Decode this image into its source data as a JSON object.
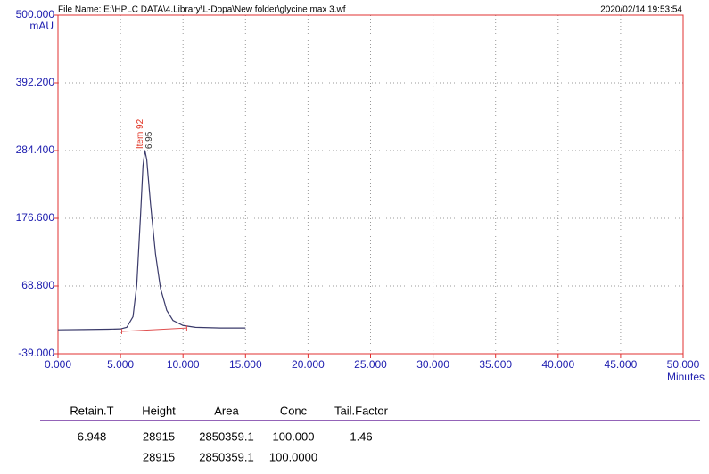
{
  "chart_data": {
    "type": "line",
    "header": {
      "file_name": "File Name: E:\\HPLC DATA\\4.Library\\L-Dopa\\New folder\\glycine max 3.wf",
      "timestamp": "2020/02/14 19:53:54"
    },
    "xlabel": "Minutes",
    "ylabel": "mAU",
    "xlim": [
      0,
      50
    ],
    "ylim": [
      -39,
      500
    ],
    "xticks": [
      {
        "value": 0,
        "label": "0.000"
      },
      {
        "value": 5,
        "label": "5.000"
      },
      {
        "value": 10,
        "label": "10.000"
      },
      {
        "value": 15,
        "label": "15.000"
      },
      {
        "value": 20,
        "label": "20.000"
      },
      {
        "value": 25,
        "label": "25.000"
      },
      {
        "value": 30,
        "label": "30.000"
      },
      {
        "value": 35,
        "label": "35.000"
      },
      {
        "value": 40,
        "label": "40.000"
      },
      {
        "value": 45,
        "label": "45.000"
      },
      {
        "value": 50,
        "label": "50.000"
      }
    ],
    "yticks": [
      {
        "value": -39,
        "label": "-39.000"
      },
      {
        "value": 68.8,
        "label": "68.800"
      },
      {
        "value": 176.6,
        "label": "176.600"
      },
      {
        "value": 284.4,
        "label": "284.400"
      },
      {
        "value": 392.2,
        "label": "392.200"
      },
      {
        "value": 500,
        "label": "500.000"
      }
    ],
    "grid": true,
    "x": [
      0,
      2,
      4,
      5,
      5.5,
      6,
      6.3,
      6.6,
      6.8,
      6.95,
      7.1,
      7.4,
      7.8,
      8.2,
      8.7,
      9.2,
      10,
      11,
      13,
      15
    ],
    "series": [
      {
        "color": "#3a3a6a",
        "values": [
          -1,
          -0.5,
          0,
          0.5,
          3,
          20,
          70,
          180,
          260,
          285,
          270,
          200,
          120,
          65,
          30,
          14,
          6,
          3,
          2,
          2
        ]
      }
    ],
    "baseline": {
      "color": "#e05050",
      "x": [
        5.1,
        10.3
      ],
      "values": [
        -3.5,
        2
      ]
    },
    "annotations": [
      {
        "text": "Item 92",
        "x": 6.6,
        "y": 287,
        "color": "#e03020"
      },
      {
        "text": "6.95",
        "x": 7.3,
        "y": 287,
        "color": "#333333"
      }
    ],
    "table": {
      "columns": [
        "Retain.T",
        "Height",
        "Area",
        "Conc",
        "Tail.Factor"
      ],
      "rows": [
        [
          "6.948",
          "28915",
          "2850359.1",
          "100.000",
          "1.46"
        ]
      ],
      "total": {
        "Height": "28915",
        "Area": "2850359.1",
        "Conc": "100.0000"
      }
    }
  }
}
